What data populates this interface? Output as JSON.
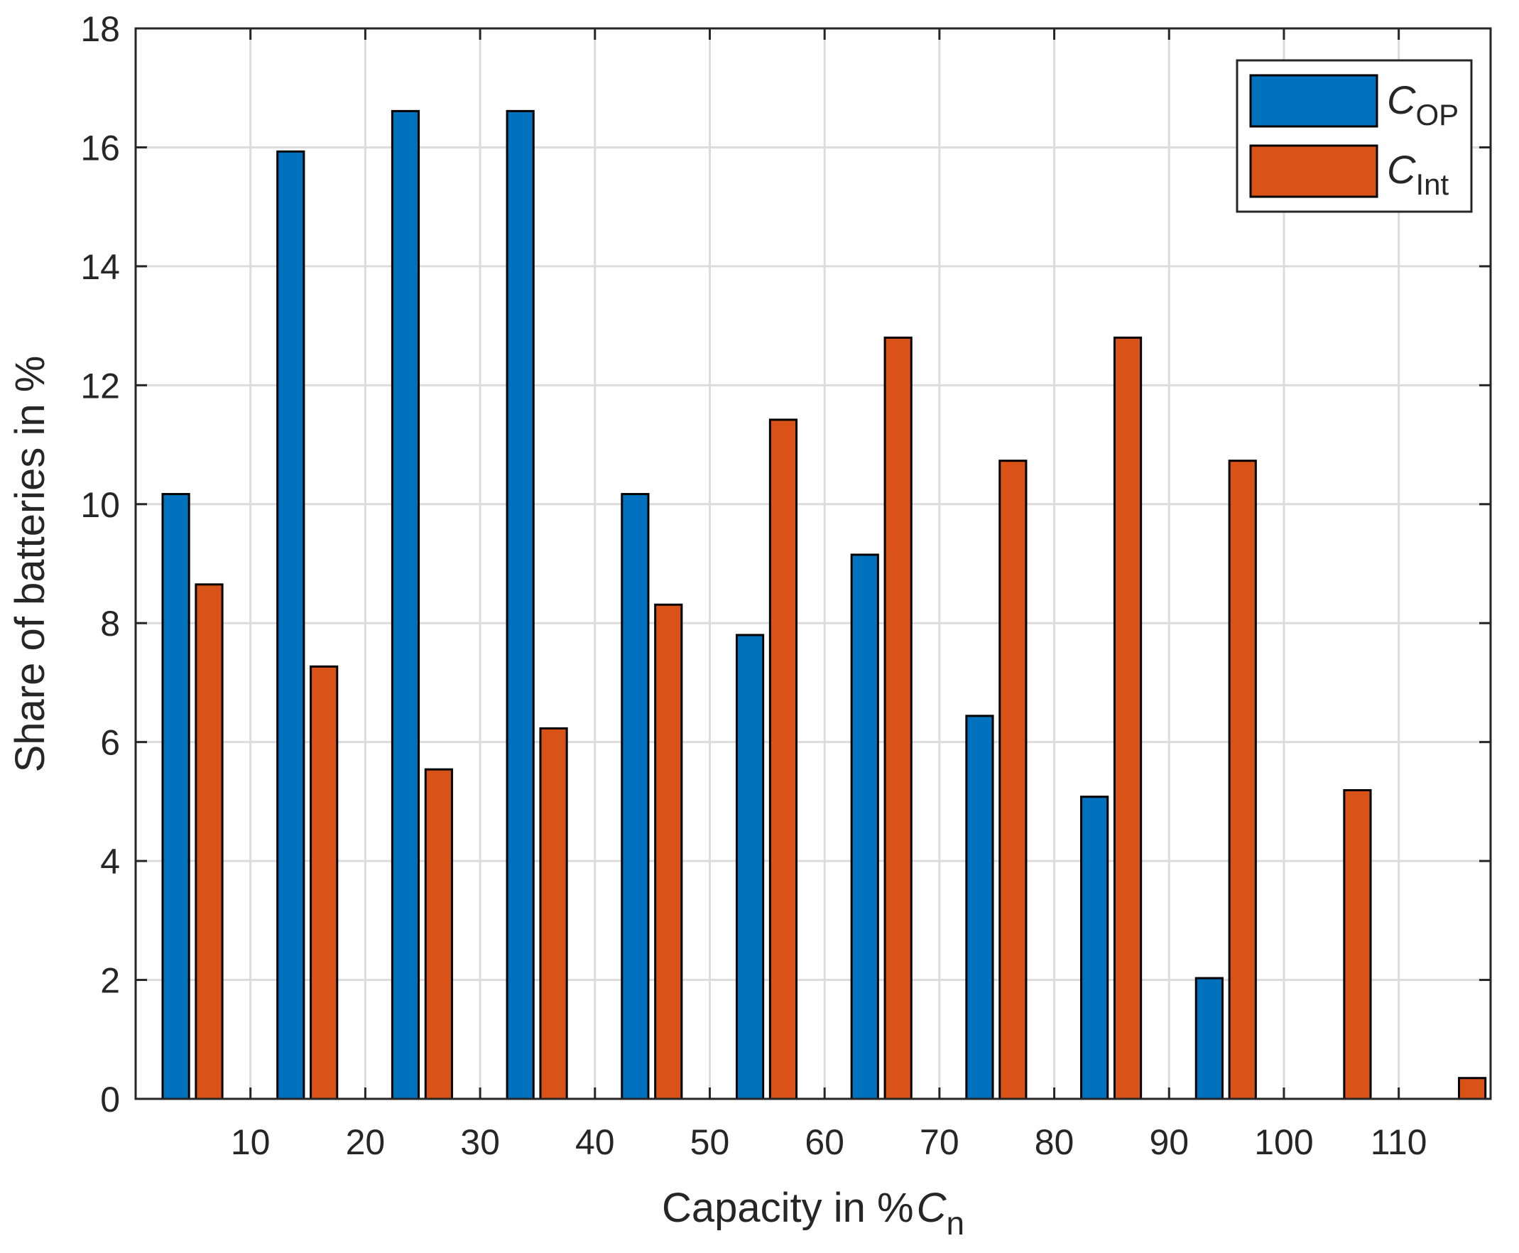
{
  "chart_data": {
    "type": "bar",
    "title": "",
    "xlabel": "Capacity in %",
    "xlabel_symbol": "C",
    "xlabel_subscript": "n",
    "ylabel": "Share of batteries in %",
    "xlim": [
      0,
      118
    ],
    "ylim": [
      0,
      18
    ],
    "grid": true,
    "legend_position": "top-right",
    "x_ticks": [
      "10",
      "20",
      "30",
      "40",
      "50",
      "60",
      "70",
      "80",
      "90",
      "100",
      "110"
    ],
    "y_ticks": [
      "0",
      "2",
      "4",
      "6",
      "8",
      "10",
      "12",
      "14",
      "16",
      "18"
    ],
    "categories": [
      "0-10",
      "10-20",
      "20-30",
      "30-40",
      "40-50",
      "50-60",
      "60-70",
      "70-80",
      "80-90",
      "90-100",
      "100-110",
      "110-120"
    ],
    "series": [
      {
        "name": "C",
        "subscript": "OP",
        "color": "#0072BD",
        "values": [
          10.17,
          15.93,
          16.61,
          16.61,
          10.17,
          7.8,
          9.15,
          6.44,
          5.08,
          2.03,
          0,
          0
        ]
      },
      {
        "name": "C",
        "subscript": "Int",
        "color": "#D95319",
        "values": [
          8.65,
          7.27,
          5.54,
          6.23,
          8.31,
          11.42,
          12.8,
          10.73,
          12.8,
          10.73,
          5.19,
          0.35
        ]
      }
    ]
  }
}
